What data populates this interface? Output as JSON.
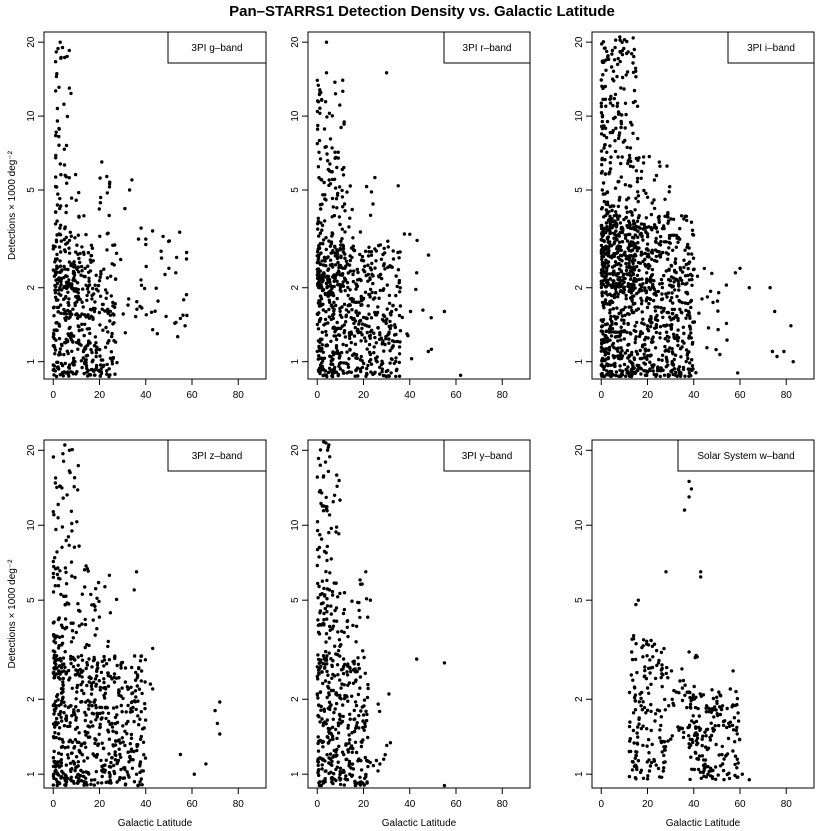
{
  "chart_data": {
    "title": "Pan–STARRS1 Detection Density vs. Galactic Latitude",
    "type": "scatter",
    "xlabel": "Galactic Latitude",
    "ylabel": "Detections × 1000 deg⁻²",
    "xlim": [
      -4,
      92
    ],
    "xticks": [
      "0",
      "20",
      "40",
      "80"
    ],
    "xtick_values": [
      0,
      20,
      40,
      60,
      80
    ],
    "xtick_labels_full": [
      "0",
      "20",
      "40",
      "60",
      "80"
    ],
    "yscale": "log",
    "yticks_top": [
      1,
      2,
      5,
      10,
      20
    ],
    "yticks_bottom": [
      1,
      2,
      5,
      10,
      20
    ],
    "ytick_labels_top": [
      "1",
      "2",
      "5",
      "10",
      "20"
    ],
    "ytick_labels_bottom": [
      "1",
      "2",
      "5",
      "10",
      "20"
    ],
    "panels": [
      {
        "legend": "3PI g–band",
        "ylim": [
          0.85,
          22
        ],
        "clusters": [
          {
            "n": 380,
            "x": [
              0,
              28
            ],
            "y": [
              0.87,
              3.0
            ],
            "skew": 1.3
          },
          {
            "n": 90,
            "x": [
              1,
              10
            ],
            "y": [
              2.0,
              20
            ],
            "skew": 1.8
          },
          {
            "n": 60,
            "x": [
              5,
              25
            ],
            "y": [
              1.5,
              6.5
            ],
            "skew": 1.4
          },
          {
            "n": 40,
            "x": [
              28,
              58
            ],
            "y": [
              1.2,
              3.5
            ],
            "skew": 1.0
          }
        ],
        "points": [
          [
            3,
            20
          ],
          [
            4,
            19
          ],
          [
            6,
            17.5
          ],
          [
            7,
            13
          ],
          [
            21,
            6.5
          ],
          [
            34,
            5.5
          ],
          [
            33,
            5
          ],
          [
            31,
            4.2
          ],
          [
            38,
            3.5
          ],
          [
            40,
            3.0
          ],
          [
            50,
            2.4
          ],
          [
            53,
            2.3
          ],
          [
            55,
            1.5
          ],
          [
            43,
            1.35
          ],
          [
            45,
            1.3
          ],
          [
            57,
            1.4
          ]
        ]
      },
      {
        "legend": "3PI r–band",
        "ylim": [
          0.85,
          22
        ],
        "clusters": [
          {
            "n": 520,
            "x": [
              0,
              36
            ],
            "y": [
              0.87,
              3.0
            ],
            "skew": 1.3
          },
          {
            "n": 160,
            "x": [
              0,
              12
            ],
            "y": [
              2.0,
              14
            ],
            "skew": 1.6
          },
          {
            "n": 70,
            "x": [
              5,
              25
            ],
            "y": [
              1.6,
              6
            ],
            "skew": 1.3
          },
          {
            "n": 25,
            "x": [
              22,
              50
            ],
            "y": [
              0.9,
              3.5
            ],
            "skew": 1.0
          }
        ],
        "points": [
          [
            4,
            20
          ],
          [
            4,
            15
          ],
          [
            30,
            15
          ],
          [
            11,
            14
          ],
          [
            35,
            5.2
          ],
          [
            40,
            3.3
          ],
          [
            43,
            2.3
          ],
          [
            55,
            1.6
          ],
          [
            62,
            0.88
          ],
          [
            48,
            1.1
          ]
        ]
      },
      {
        "legend": "3PI i–band",
        "ylim": [
          0.85,
          22
        ],
        "clusters": [
          {
            "n": 900,
            "x": [
              0,
              40
            ],
            "y": [
              0.87,
              4.0
            ],
            "skew": 1.3
          },
          {
            "n": 320,
            "x": [
              0,
              16
            ],
            "y": [
              2.0,
              21
            ],
            "skew": 1.5
          },
          {
            "n": 90,
            "x": [
              8,
              30
            ],
            "y": [
              1.8,
              7
            ],
            "skew": 1.2
          },
          {
            "n": 35,
            "x": [
              30,
              55
            ],
            "y": [
              0.9,
              2.5
            ],
            "skew": 1.0
          }
        ],
        "points": [
          [
            8,
            21
          ],
          [
            9,
            20
          ],
          [
            6,
            19
          ],
          [
            60,
            2.4
          ],
          [
            58,
            2.3
          ],
          [
            64,
            2.0
          ],
          [
            73,
            2.0
          ],
          [
            75,
            1.6
          ],
          [
            82,
            1.4
          ],
          [
            74,
            1.1
          ],
          [
            76,
            1.05
          ],
          [
            83,
            1.0
          ],
          [
            59,
            0.9
          ],
          [
            79,
            1.1
          ]
        ]
      },
      {
        "legend": "3PI z–band",
        "ylim": [
          0.88,
          22
        ],
        "clusters": [
          {
            "n": 520,
            "x": [
              0,
              40
            ],
            "y": [
              0.9,
              3.0
            ],
            "skew": 1.3
          },
          {
            "n": 110,
            "x": [
              0,
              12
            ],
            "y": [
              2.5,
              21
            ],
            "skew": 1.8
          },
          {
            "n": 80,
            "x": [
              4,
              28
            ],
            "y": [
              1.6,
              7
            ],
            "skew": 1.3
          }
        ],
        "points": [
          [
            4,
            22
          ],
          [
            5,
            21
          ],
          [
            7,
            20
          ],
          [
            36,
            6.5
          ],
          [
            35,
            5.5
          ],
          [
            43,
            3.2
          ],
          [
            42,
            2.3
          ],
          [
            43,
            2.2
          ],
          [
            72,
            1.95
          ],
          [
            70,
            1.8
          ],
          [
            71,
            1.6
          ],
          [
            72,
            1.45
          ],
          [
            55,
            1.2
          ],
          [
            66,
            1.1
          ],
          [
            61,
            1.0
          ]
        ]
      },
      {
        "legend": "3PI y–band",
        "ylim": [
          0.88,
          22
        ],
        "clusters": [
          {
            "n": 290,
            "x": [
              0,
              22
            ],
            "y": [
              0.9,
              3.0
            ],
            "skew": 1.3
          },
          {
            "n": 110,
            "x": [
              0,
              10
            ],
            "y": [
              2.5,
              22
            ],
            "skew": 1.5
          },
          {
            "n": 70,
            "x": [
              4,
              22
            ],
            "y": [
              1.6,
              6.5
            ],
            "skew": 1.2
          },
          {
            "n": 12,
            "x": [
              22,
              32
            ],
            "y": [
              1.0,
              2.0
            ],
            "skew": 1.0
          }
        ],
        "points": [
          [
            3,
            22
          ],
          [
            5,
            21
          ],
          [
            21,
            6.5
          ],
          [
            23,
            5
          ],
          [
            43,
            2.9
          ],
          [
            55,
            2.8
          ],
          [
            31,
            2.1
          ],
          [
            55,
            0.9
          ]
        ]
      },
      {
        "legend": "Solar System w–band",
        "ylim": [
          0.88,
          22
        ],
        "clusters": [
          {
            "n": 150,
            "x": [
              12,
              28
            ],
            "y": [
              0.95,
              3.5
            ],
            "skew": 1.1
          },
          {
            "n": 170,
            "x": [
              38,
              60
            ],
            "y": [
              0.95,
              2.2
            ],
            "skew": 1.2
          },
          {
            "n": 45,
            "x": [
              28,
              42
            ],
            "y": [
              1.3,
              3.0
            ],
            "skew": 1.0
          }
        ],
        "points": [
          [
            16,
            5.0
          ],
          [
            15,
            4.8
          ],
          [
            14,
            3.6
          ],
          [
            14,
            3.5
          ],
          [
            36,
            11.5
          ],
          [
            38,
            13
          ],
          [
            38,
            15
          ],
          [
            39,
            14
          ],
          [
            28,
            6.5
          ],
          [
            43,
            6.5
          ],
          [
            43,
            6.2
          ],
          [
            38,
            3.1
          ],
          [
            41,
            3.0
          ],
          [
            57,
            2.6
          ],
          [
            61,
            1.0
          ],
          [
            64,
            0.95
          ]
        ]
      }
    ]
  }
}
